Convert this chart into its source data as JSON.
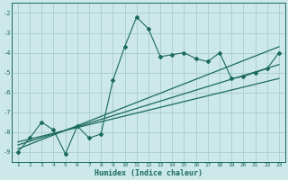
{
  "xlabel": "Humidex (Indice chaleur)",
  "bg_color": "#cce8e8",
  "grid_color": "#aacccc",
  "line_color": "#1a6b5a",
  "x_data": [
    1,
    2,
    3,
    4,
    5,
    6,
    7,
    8,
    9,
    10,
    11,
    12,
    13,
    14,
    15,
    16,
    17,
    18,
    19,
    20,
    21,
    22,
    23
  ],
  "y_zigzag": [
    -9.0,
    -8.3,
    -7.5,
    -7.9,
    -9.1,
    -7.7,
    -8.3,
    -8.1,
    -5.4,
    -3.7,
    -2.2,
    -2.8,
    -4.2,
    -4.1,
    -4.0,
    -4.3,
    -4.45,
    -4.0,
    -5.3,
    -5.2,
    -5.0,
    -4.8,
    -4.0
  ],
  "trend_lines": [
    [
      [
        -8.85,
        -3.7
      ],
      [
        1,
        23
      ]
    ],
    [
      [
        -8.65,
        -4.6
      ],
      [
        1,
        23
      ]
    ],
    [
      [
        -8.5,
        -5.3
      ],
      [
        1,
        23
      ]
    ]
  ],
  "ylim": [
    -9.5,
    -1.5
  ],
  "xlim": [
    0.5,
    23.5
  ],
  "yticks": [
    -9,
    -8,
    -7,
    -6,
    -5,
    -4,
    -3,
    -2
  ],
  "xticks": [
    1,
    2,
    3,
    4,
    5,
    6,
    7,
    8,
    9,
    10,
    11,
    12,
    13,
    14,
    15,
    16,
    17,
    18,
    19,
    20,
    21,
    22,
    23
  ]
}
